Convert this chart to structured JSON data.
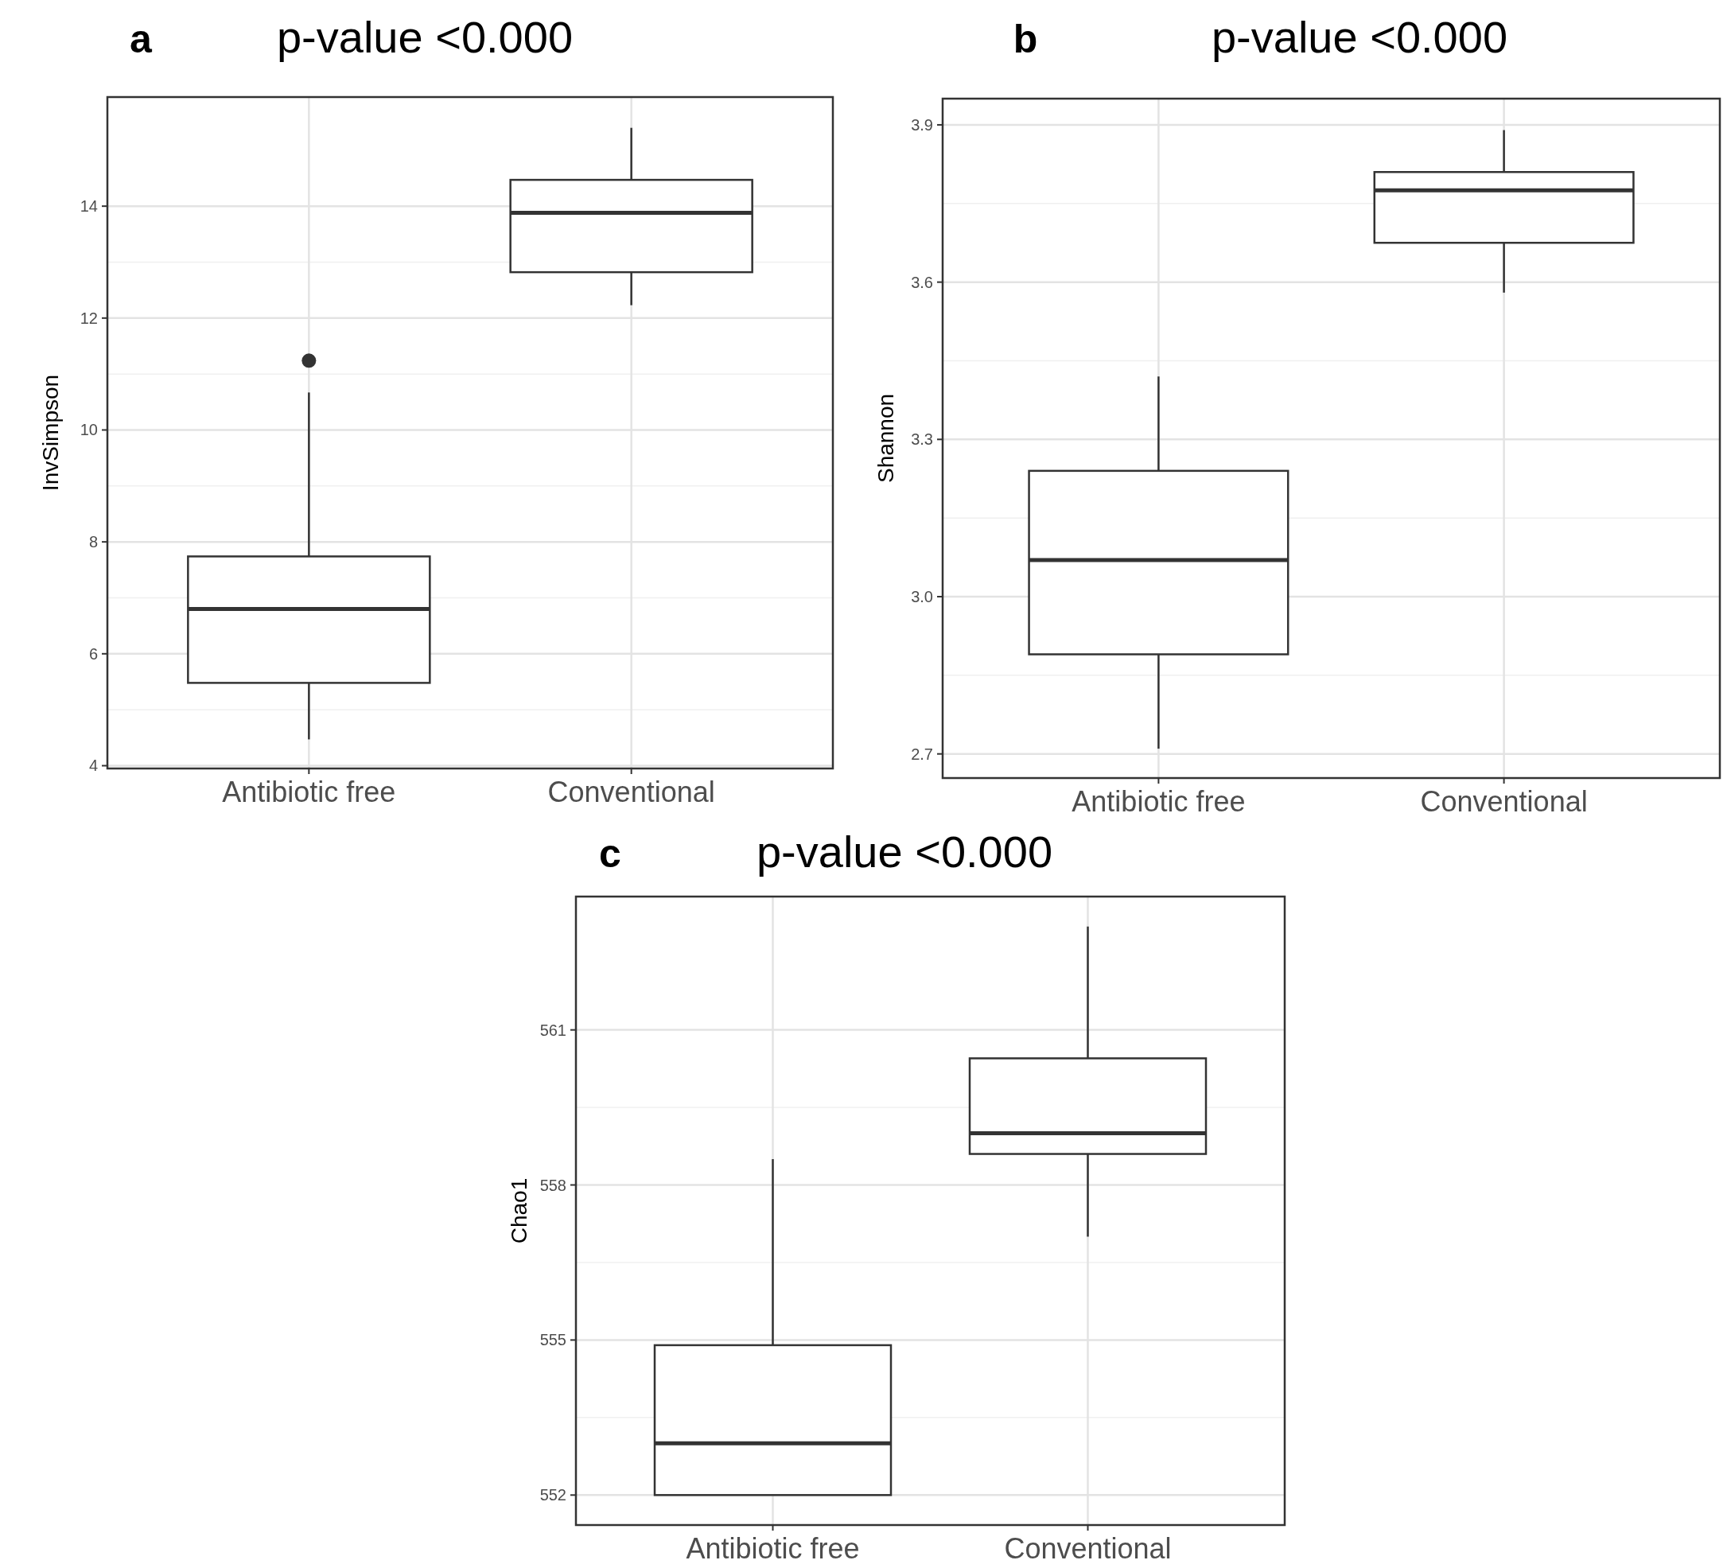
{
  "chart_data": [
    {
      "type": "box",
      "title": "p-value <0.000",
      "annotations": [
        "a"
      ],
      "ylabel": "InvSimpson",
      "categories": [
        "Antibiotic free",
        "Conventional"
      ],
      "ylim": [
        3.95,
        15.95
      ],
      "yticks": [
        4,
        6,
        8,
        10,
        12,
        14
      ],
      "grid": true,
      "color": "#333333",
      "boxes": [
        {
          "low": 4.47,
          "q1": 5.48,
          "median": 6.8,
          "q3": 7.74,
          "high": 10.67,
          "outliers": [
            11.24
          ]
        },
        {
          "low": 12.23,
          "q1": 12.82,
          "median": 13.88,
          "q3": 14.47,
          "high": 15.4
        }
      ]
    },
    {
      "type": "box",
      "title": "p-value <0.000",
      "annotations": [
        "b"
      ],
      "ylabel": "Shannon",
      "categories": [
        "Antibiotic free",
        "Conventional"
      ],
      "ylim": [
        2.654,
        3.95
      ],
      "yticks": [
        {
          "value": 2.7,
          "label": "2.7"
        },
        {
          "value": 3,
          "label": "3.0"
        },
        {
          "value": 3.3,
          "label": "3.3"
        },
        {
          "value": 3.6,
          "label": "3.6"
        },
        {
          "value": 3.9,
          "label": "3.9"
        }
      ],
      "grid": true,
      "color": "#333333",
      "boxes": [
        {
          "low": 2.71,
          "q1": 2.89,
          "median": 3.07,
          "q3": 3.24,
          "high": 3.42
        },
        {
          "low": 3.58,
          "q1": 3.675,
          "median": 3.775,
          "q3": 3.81,
          "high": 3.89
        }
      ]
    },
    {
      "type": "box",
      "title": "p-value <0.000",
      "annotations": [
        "c"
      ],
      "ylabel": "Chao1",
      "categories": [
        "Antibiotic free",
        "Conventional"
      ],
      "ylim": [
        551.42,
        563.58
      ],
      "yticks": [
        552,
        555,
        558,
        561
      ],
      "grid": true,
      "color": "#333333",
      "boxes": [
        {
          "low": 552,
          "q1": 552,
          "median": 553,
          "q3": 554.9,
          "high": 558.5
        },
        {
          "low": 557,
          "q1": 558.6,
          "median": 559,
          "q3": 560.45,
          "high": 563
        }
      ]
    }
  ]
}
